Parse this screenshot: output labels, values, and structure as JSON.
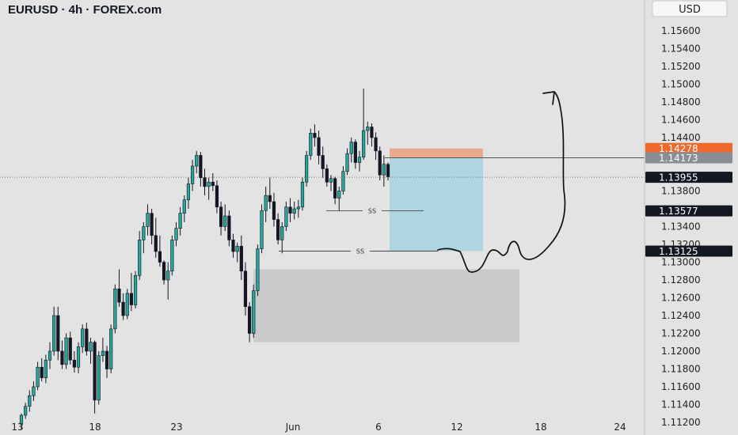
{
  "title": "EURUSD · 4h · FOREX.com",
  "currency_button": "USD",
  "colors": {
    "up": "#26a69a",
    "down": "#131722",
    "stop_zone": "#e8a98c",
    "target_zone": "#aed5e0",
    "demand_zone": "#c9cacc",
    "orange_tag": "#f0692c",
    "grey_tag": "#8a8d94",
    "black_tag": "#131722"
  },
  "chart_data": {
    "type": "candlestick",
    "symbol": "EURUSD",
    "timeframe": "4h",
    "ylim": [
      1.1115,
      1.159
    ],
    "y_ticks": [
      "1.15600",
      "1.15400",
      "1.15200",
      "1.15000",
      "1.14800",
      "1.14600",
      "1.14400",
      "1.14200",
      "1.14000",
      "1.13800",
      "1.13600",
      "1.13400",
      "1.13200",
      "1.13000",
      "1.12800",
      "1.12600",
      "1.12400",
      "1.12200",
      "1.12000",
      "1.11800",
      "1.11600",
      "1.11400",
      "1.11200"
    ],
    "x_ticks": [
      "13",
      "18",
      "23",
      "Jun",
      "6",
      "12",
      "18",
      "24"
    ],
    "price_tags": [
      {
        "label": "1.14278",
        "value": 1.14278,
        "style": "orange"
      },
      {
        "label": "1.14173",
        "value": 1.14173,
        "style": "grey"
      },
      {
        "label": "1.13955",
        "value": 1.13955,
        "style": "black"
      },
      {
        "label": "1.13577",
        "value": 1.13577,
        "style": "black"
      },
      {
        "label": "1.13125",
        "value": 1.13125,
        "style": "black"
      }
    ],
    "current_price": 1.13955,
    "sell_setup": {
      "entry": 1.14173,
      "stop": 1.14278,
      "target": 1.13125
    },
    "demand_zone": {
      "top": 1.1292,
      "bottom": 1.121
    },
    "sellside_liquidity": [
      {
        "label": "SS",
        "value": 1.13577
      },
      {
        "label": "SS",
        "value": 1.13125
      }
    ],
    "candles": [
      [
        1.1118,
        1.113,
        1.1112,
        1.1128
      ],
      [
        1.1128,
        1.1142,
        1.1124,
        1.1138
      ],
      [
        1.1138,
        1.1156,
        1.1132,
        1.115
      ],
      [
        1.115,
        1.1166,
        1.1144,
        1.116
      ],
      [
        1.116,
        1.1188,
        1.1156,
        1.1182
      ],
      [
        1.1182,
        1.1192,
        1.1166,
        1.117
      ],
      [
        1.117,
        1.1196,
        1.1164,
        1.119
      ],
      [
        1.119,
        1.121,
        1.118,
        1.12
      ],
      [
        1.12,
        1.125,
        1.1195,
        1.124
      ],
      [
        1.124,
        1.125,
        1.119,
        1.12
      ],
      [
        1.12,
        1.1212,
        1.118,
        1.1185
      ],
      [
        1.1185,
        1.122,
        1.118,
        1.1215
      ],
      [
        1.1215,
        1.1222,
        1.1185,
        1.119
      ],
      [
        1.119,
        1.12,
        1.1176,
        1.1182
      ],
      [
        1.1182,
        1.121,
        1.1175,
        1.1205
      ],
      [
        1.1205,
        1.123,
        1.1198,
        1.1225
      ],
      [
        1.1225,
        1.1232,
        1.1195,
        1.12
      ],
      [
        1.12,
        1.1215,
        1.1186,
        1.121
      ],
      [
        1.121,
        1.1212,
        1.113,
        1.1145
      ],
      [
        1.1145,
        1.12,
        1.114,
        1.1195
      ],
      [
        1.1195,
        1.1215,
        1.1188,
        1.12
      ],
      [
        1.12,
        1.1206,
        1.117,
        1.118
      ],
      [
        1.118,
        1.123,
        1.1175,
        1.1225
      ],
      [
        1.1225,
        1.1275,
        1.122,
        1.127
      ],
      [
        1.127,
        1.1292,
        1.125,
        1.1255
      ],
      [
        1.1255,
        1.1265,
        1.1235,
        1.124
      ],
      [
        1.124,
        1.127,
        1.1236,
        1.1265
      ],
      [
        1.1265,
        1.1288,
        1.1245,
        1.1252
      ],
      [
        1.1252,
        1.129,
        1.1248,
        1.1285
      ],
      [
        1.1285,
        1.1335,
        1.128,
        1.1325
      ],
      [
        1.1325,
        1.1345,
        1.131,
        1.134
      ],
      [
        1.134,
        1.1365,
        1.133,
        1.1355
      ],
      [
        1.1355,
        1.136,
        1.132,
        1.133
      ],
      [
        1.133,
        1.135,
        1.1305,
        1.1312
      ],
      [
        1.1312,
        1.133,
        1.1295,
        1.13
      ],
      [
        1.13,
        1.1302,
        1.1275,
        1.128
      ],
      [
        1.128,
        1.13,
        1.1258,
        1.129
      ],
      [
        1.129,
        1.133,
        1.1285,
        1.1325
      ],
      [
        1.1325,
        1.1345,
        1.1318,
        1.1338
      ],
      [
        1.1338,
        1.1362,
        1.133,
        1.1355
      ],
      [
        1.1355,
        1.1375,
        1.1345,
        1.137
      ],
      [
        1.137,
        1.1395,
        1.136,
        1.1388
      ],
      [
        1.1388,
        1.1415,
        1.138,
        1.1408
      ],
      [
        1.1408,
        1.1425,
        1.14,
        1.142
      ],
      [
        1.142,
        1.1424,
        1.1385,
        1.1395
      ],
      [
        1.1395,
        1.1405,
        1.1375,
        1.1385
      ],
      [
        1.1385,
        1.1395,
        1.137,
        1.139
      ],
      [
        1.139,
        1.14,
        1.138,
        1.1386
      ],
      [
        1.1386,
        1.1392,
        1.1355,
        1.1362
      ],
      [
        1.1362,
        1.1368,
        1.133,
        1.134
      ],
      [
        1.134,
        1.1365,
        1.1335,
        1.1352
      ],
      [
        1.1352,
        1.1358,
        1.1318,
        1.1325
      ],
      [
        1.1325,
        1.1332,
        1.1305,
        1.1312
      ],
      [
        1.1312,
        1.1322,
        1.13,
        1.1318
      ],
      [
        1.1318,
        1.133,
        1.128,
        1.129
      ],
      [
        1.129,
        1.13,
        1.124,
        1.125
      ],
      [
        1.125,
        1.1255,
        1.121,
        1.122
      ],
      [
        1.122,
        1.1275,
        1.1215,
        1.1268
      ],
      [
        1.1268,
        1.132,
        1.1262,
        1.1315
      ],
      [
        1.1315,
        1.1365,
        1.131,
        1.1358
      ],
      [
        1.1358,
        1.1385,
        1.1345,
        1.1375
      ],
      [
        1.1375,
        1.1395,
        1.136,
        1.1368
      ],
      [
        1.1368,
        1.1378,
        1.134,
        1.1348
      ],
      [
        1.1348,
        1.1355,
        1.132,
        1.1325
      ],
      [
        1.1325,
        1.1345,
        1.131,
        1.134
      ],
      [
        1.134,
        1.1368,
        1.1335,
        1.1362
      ],
      [
        1.1362,
        1.1372,
        1.1345,
        1.1355
      ],
      [
        1.1355,
        1.1368,
        1.1348,
        1.136
      ],
      [
        1.136,
        1.137,
        1.135,
        1.1362
      ],
      [
        1.1362,
        1.1395,
        1.1358,
        1.139
      ],
      [
        1.139,
        1.1425,
        1.1385,
        1.142
      ],
      [
        1.142,
        1.145,
        1.1415,
        1.1445
      ],
      [
        1.1445,
        1.1455,
        1.143,
        1.144
      ],
      [
        1.144,
        1.1448,
        1.141,
        1.142
      ],
      [
        1.142,
        1.143,
        1.1395,
        1.1405
      ],
      [
        1.1405,
        1.141,
        1.1385,
        1.139
      ],
      [
        1.139,
        1.1398,
        1.138,
        1.1394
      ],
      [
        1.1394,
        1.1396,
        1.1365,
        1.1372
      ],
      [
        1.1372,
        1.1385,
        1.1358,
        1.138
      ],
      [
        1.138,
        1.1408,
        1.1376,
        1.1402
      ],
      [
        1.1402,
        1.1428,
        1.1398,
        1.1422
      ],
      [
        1.1422,
        1.144,
        1.1412,
        1.1435
      ],
      [
        1.1435,
        1.1438,
        1.1405,
        1.1412
      ],
      [
        1.1412,
        1.1425,
        1.1402,
        1.1418
      ],
      [
        1.1418,
        1.1495,
        1.1415,
        1.1448
      ],
      [
        1.1448,
        1.1458,
        1.1432,
        1.1452
      ],
      [
        1.1452,
        1.1456,
        1.143,
        1.144
      ],
      [
        1.144,
        1.1446,
        1.1415,
        1.1425
      ],
      [
        1.1425,
        1.143,
        1.1392,
        1.1398
      ],
      [
        1.1398,
        1.142,
        1.1385,
        1.141
      ],
      [
        1.141,
        1.1412,
        1.1392,
        1.1396
      ]
    ]
  }
}
